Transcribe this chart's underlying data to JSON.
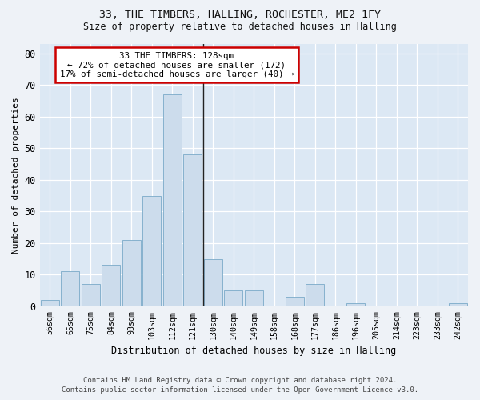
{
  "title1": "33, THE TIMBERS, HALLING, ROCHESTER, ME2 1FY",
  "title2": "Size of property relative to detached houses in Halling",
  "xlabel": "Distribution of detached houses by size in Halling",
  "ylabel": "Number of detached properties",
  "bar_labels": [
    "56sqm",
    "65sqm",
    "75sqm",
    "84sqm",
    "93sqm",
    "103sqm",
    "112sqm",
    "121sqm",
    "130sqm",
    "140sqm",
    "149sqm",
    "158sqm",
    "168sqm",
    "177sqm",
    "186sqm",
    "196sqm",
    "205sqm",
    "214sqm",
    "223sqm",
    "233sqm",
    "242sqm"
  ],
  "bar_values": [
    2,
    11,
    7,
    13,
    21,
    35,
    67,
    48,
    15,
    5,
    5,
    0,
    3,
    7,
    0,
    1,
    0,
    0,
    0,
    0,
    1
  ],
  "bar_color": "#ccdcec",
  "bar_edge_color": "#7aaac8",
  "annotation_title": "33 THE TIMBERS: 128sqm",
  "annotation_line1": "← 72% of detached houses are smaller (172)",
  "annotation_line2": "17% of semi-detached houses are larger (40) →",
  "yticks": [
    0,
    10,
    20,
    30,
    40,
    50,
    60,
    70,
    80
  ],
  "ylim": [
    0,
    83
  ],
  "footer1": "Contains HM Land Registry data © Crown copyright and database right 2024.",
  "footer2": "Contains public sector information licensed under the Open Government Licence v3.0.",
  "fig_bg_color": "#eef2f7",
  "plot_bg_color": "#dce8f4",
  "annotation_box_color": "#ffffff",
  "annotation_box_edge": "#cc0000",
  "grid_color": "#ffffff",
  "vline_color": "#222222"
}
